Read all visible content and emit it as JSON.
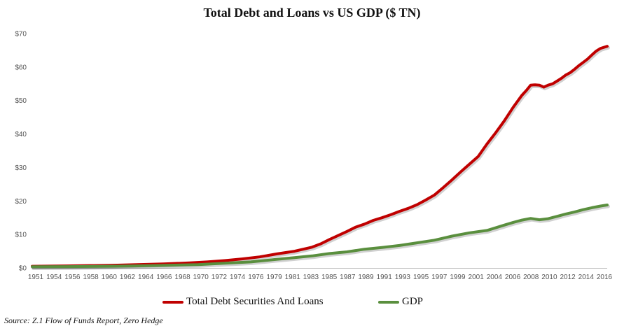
{
  "chart_data": {
    "type": "line",
    "title": "Total Debt and Loans vs US GDP ($ TN)",
    "xlabel": "",
    "ylabel": "",
    "ylim": [
      0,
      70
    ],
    "xlim": [
      1951,
      2016.75
    ],
    "y_ticks": [
      "$0",
      "$10",
      "$20",
      "$30",
      "$40",
      "$50",
      "$60",
      "$70"
    ],
    "x_ticks": [
      "1951",
      "1954",
      "1956",
      "1958",
      "1960",
      "1962",
      "1964",
      "1966",
      "1968",
      "1970",
      "1972",
      "1974",
      "1976",
      "1979",
      "1981",
      "1983",
      "1985",
      "1987",
      "1989",
      "1991",
      "1993",
      "1995",
      "1997",
      "1999",
      "2001",
      "2004",
      "2006",
      "2008",
      "2010",
      "2012",
      "2014",
      "2016"
    ],
    "grid": false,
    "legend_position": "bottom",
    "series": [
      {
        "name": "Total Debt Securities And Loans",
        "color": "#c00000",
        "x": [
          1951,
          1955,
          1958,
          1960,
          1963,
          1966,
          1969,
          1971,
          1973,
          1975,
          1977,
          1979,
          1981,
          1983,
          1984,
          1985,
          1986,
          1987,
          1988,
          1989,
          1990,
          1991,
          1992,
          1993,
          1994,
          1995,
          1996,
          1997,
          1998,
          1999,
          2000,
          2001,
          2002,
          2003,
          2004,
          2005,
          2006,
          2007,
          2007.5,
          2008,
          2008.5,
          2009,
          2009.5,
          2010,
          2010.5,
          2011,
          2011.5,
          2012,
          2012.5,
          2013,
          2013.5,
          2014,
          2014.5,
          2015,
          2015.5,
          2016,
          2016.75
        ],
        "values": [
          0.5,
          0.6,
          0.7,
          0.8,
          1.0,
          1.2,
          1.5,
          1.8,
          2.2,
          2.7,
          3.3,
          4.2,
          5.0,
          6.2,
          7.2,
          8.5,
          9.7,
          10.9,
          12.2,
          13.1,
          14.2,
          15.0,
          15.9,
          16.9,
          17.8,
          18.9,
          20.3,
          21.8,
          24.0,
          26.3,
          28.7,
          31.0,
          33.3,
          37.0,
          40.4,
          44.0,
          48.0,
          51.6,
          53.0,
          54.6,
          54.7,
          54.6,
          54.0,
          54.6,
          55.0,
          55.8,
          56.6,
          57.6,
          58.3,
          59.3,
          60.4,
          61.4,
          62.4,
          63.6,
          64.8,
          65.6,
          66.2
        ]
      },
      {
        "name": "GDP",
        "color": "#5a8f3e",
        "x": [
          1951,
          1955,
          1960,
          1965,
          1970,
          1973,
          1976,
          1979,
          1981,
          1983,
          1985,
          1987,
          1989,
          1991,
          1993,
          1995,
          1997,
          1999,
          2001,
          2003,
          2004,
          2005,
          2006,
          2007,
          2008,
          2009,
          2010,
          2011,
          2012,
          2013,
          2014,
          2015,
          2016,
          2016.75
        ],
        "values": [
          0.35,
          0.4,
          0.5,
          0.7,
          1.0,
          1.4,
          1.8,
          2.6,
          3.1,
          3.6,
          4.3,
          4.8,
          5.6,
          6.1,
          6.7,
          7.5,
          8.3,
          9.5,
          10.5,
          11.2,
          12.0,
          12.8,
          13.6,
          14.3,
          14.8,
          14.4,
          14.7,
          15.4,
          16.1,
          16.7,
          17.4,
          18.0,
          18.5,
          18.8
        ]
      }
    ]
  },
  "source_note": "Source: Z.1 Flow of Funds Report, Zero Hedge"
}
